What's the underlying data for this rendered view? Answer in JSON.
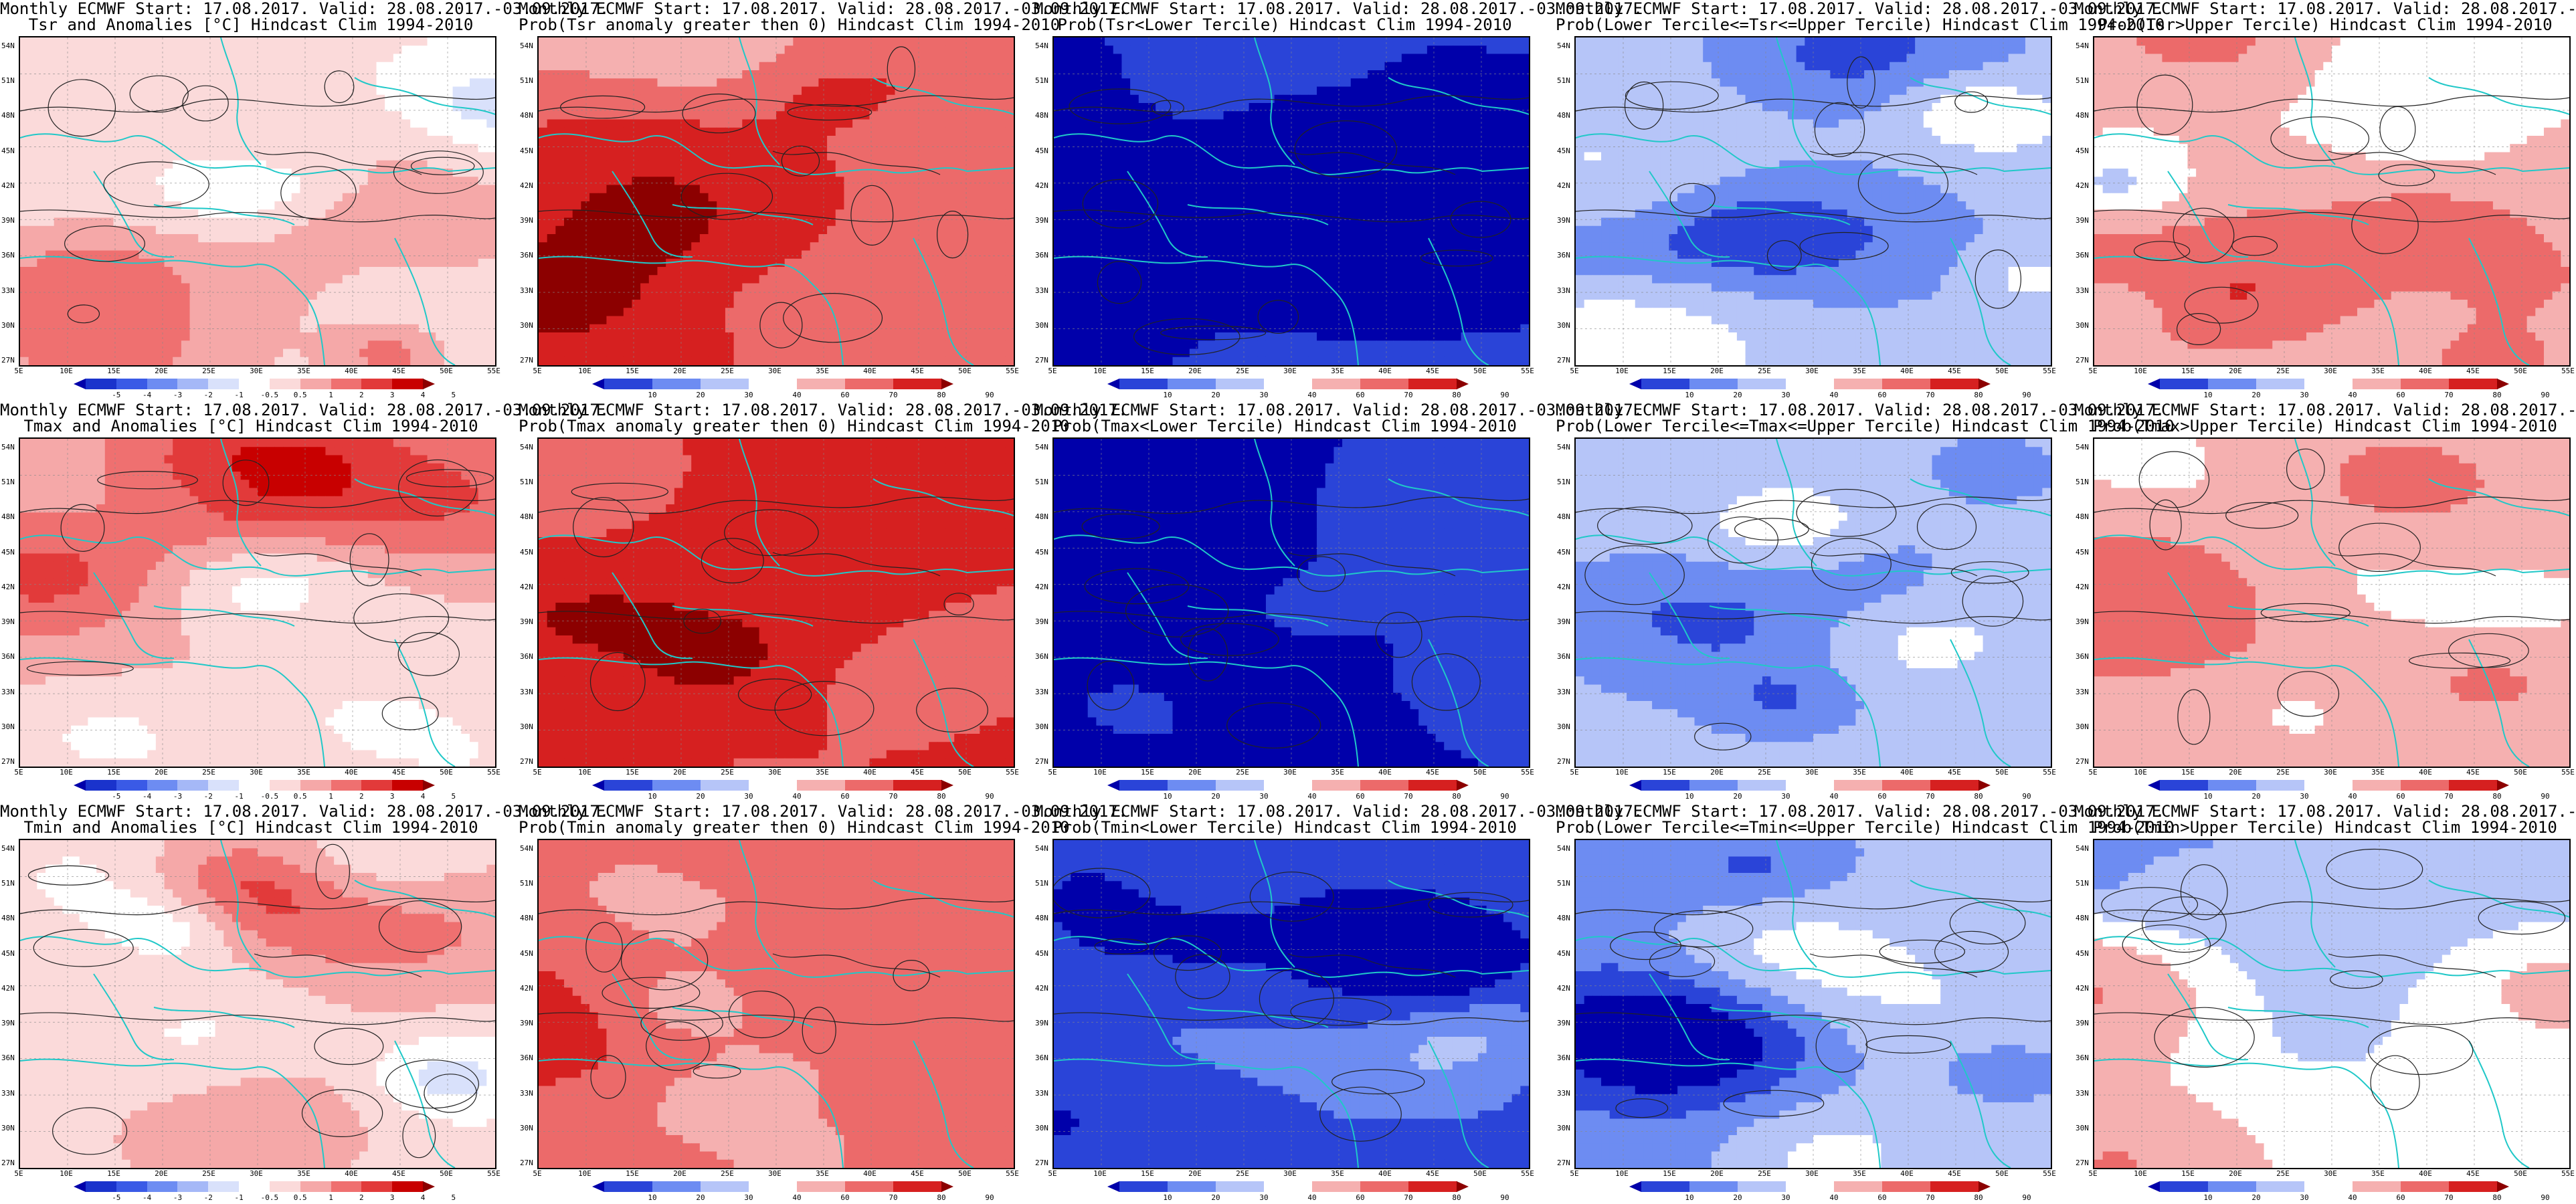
{
  "header_line": "Monthly ECMWF Start: 17.08.2017. Valid: 28.08.2017.-03.09.2017.",
  "lat_labels": [
    "54N",
    "51N",
    "48N",
    "45N",
    "42N",
    "39N",
    "36N",
    "33N",
    "30N",
    "27N"
  ],
  "lon_labels": [
    "5E",
    "10E",
    "15E",
    "20E",
    "25E",
    "30E",
    "35E",
    "40E",
    "45E",
    "50E",
    "55E"
  ],
  "colorbars": {
    "anom": {
      "labels": [
        "-5",
        "-4",
        "-3",
        "-2",
        "-1",
        "-0.5",
        "0.5",
        "1",
        "2",
        "3",
        "4",
        "5"
      ],
      "colors": [
        "#0000aa",
        "#1a33cc",
        "#3a5ae6",
        "#6d8cf2",
        "#a5b8f7",
        "#d9e1fb",
        "#ffffff",
        "#fbdada",
        "#f5a8a8",
        "#ef7070",
        "#e23a3a",
        "#c80000",
        "#8c0000"
      ]
    },
    "prob": {
      "labels": [
        "10",
        "20",
        "30",
        "40",
        "60",
        "70",
        "80",
        "90"
      ],
      "colors": [
        "#0000aa",
        "#2a44d8",
        "#6d8cf2",
        "#b6c5f8",
        "#ffffff",
        "#f5b0b0",
        "#ec6a6a",
        "#d62020",
        "#8c0000"
      ]
    }
  },
  "rows": [
    {
      "variable": "Tsr",
      "panels": [
        {
          "subtitle": "Tsr and Anomalies [°C] Hindcast Clim 1994-2010",
          "type": "anom"
        },
        {
          "subtitle": "Prob(Tsr anomaly greater then 0) Hindcast Clim 1994-2010",
          "type": "prob"
        },
        {
          "subtitle": "Prob(Tsr<Lower Tercile) Hindcast Clim 1994-2010",
          "type": "prob"
        },
        {
          "subtitle": "Prob(Lower Tercile<=Tsr<=Upper Tercile) Hindcast Clim 1994-2010",
          "type": "prob"
        },
        {
          "subtitle": "Prob(Tsr>Upper Tercile) Hindcast Clim 1994-2010",
          "type": "prob"
        }
      ]
    },
    {
      "variable": "Tmax",
      "panels": [
        {
          "subtitle": "Tmax and Anomalies [°C] Hindcast Clim 1994-2010",
          "type": "anom"
        },
        {
          "subtitle": "Prob(Tmax anomaly greater then 0) Hindcast Clim 1994-2010",
          "type": "prob"
        },
        {
          "subtitle": "Prob(Tmax<Lower Tercile) Hindcast Clim 1994-2010",
          "type": "prob"
        },
        {
          "subtitle": "Prob(Lower Tercile<=Tmax<=Upper Tercile) Hindcast Clim 1994-2010",
          "type": "prob"
        },
        {
          "subtitle": "Prob(Tmax>Upper Tercile) Hindcast Clim 1994-2010",
          "type": "prob"
        }
      ]
    },
    {
      "variable": "Tmin",
      "panels": [
        {
          "subtitle": "Tmin and Anomalies [°C] Hindcast Clim 1994-2010",
          "type": "anom"
        },
        {
          "subtitle": "Prob(Tmin anomaly greater then 0) Hindcast Clim 1994-2010",
          "type": "prob"
        },
        {
          "subtitle": "Prob(Tmin<Lower Tercile) Hindcast Clim 1994-2010",
          "type": "prob"
        },
        {
          "subtitle": "Prob(Lower Tercile<=Tmin<=Upper Tercile) Hindcast Clim 1994-2010",
          "type": "prob"
        },
        {
          "subtitle": "Prob(Tmin>Upper Tercile) Hindcast Clim 1994-2010",
          "type": "prob"
        }
      ]
    }
  ]
}
